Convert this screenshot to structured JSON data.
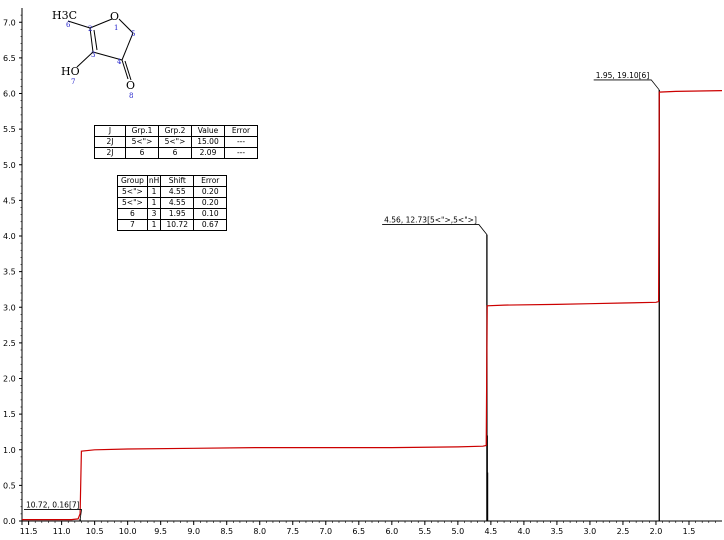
{
  "chart_data": {
    "type": "line",
    "title": "",
    "xlabel": "",
    "ylabel": "",
    "x_reversed": true,
    "xlim": [
      11.6,
      1.0
    ],
    "ylim": [
      0,
      7.2
    ],
    "x_ticks": [
      "11.5",
      "11.0",
      "10.5",
      "10.0",
      "9.5",
      "9.0",
      "8.5",
      "8.0",
      "7.5",
      "7.0",
      "6.5",
      "6.0",
      "5.5",
      "5.0",
      "4.5",
      "4.0",
      "3.5",
      "3.0",
      "2.5",
      "2.0",
      "1.5"
    ],
    "y_ticks": [
      "0.0",
      "0.5",
      "1.0",
      "1.5",
      "2.0",
      "2.5",
      "3.0",
      "3.5",
      "4.0",
      "4.5",
      "5.0",
      "5.5",
      "6.0",
      "6.5",
      "7.0"
    ],
    "colors": {
      "spectrum": "#000000",
      "integral": "#cc0000",
      "atom_numbers": "#2222cc"
    },
    "spectrum_peaks": [
      {
        "shift": 10.72,
        "height": 0.03
      },
      {
        "shift": 4.56,
        "height": 4.02
      },
      {
        "shift": 4.555,
        "height": 1.2
      },
      {
        "shift": 4.55,
        "height": 0.68
      },
      {
        "shift": 1.95,
        "height": 6.05
      }
    ],
    "integral": [
      [
        11.6,
        0.02
      ],
      [
        10.85,
        0.02
      ],
      [
        10.75,
        0.03
      ],
      [
        10.72,
        0.1
      ],
      [
        10.7,
        0.98
      ],
      [
        10.5,
        1.0
      ],
      [
        10.0,
        1.01
      ],
      [
        9.0,
        1.02
      ],
      [
        8.0,
        1.03
      ],
      [
        7.0,
        1.03
      ],
      [
        6.0,
        1.03
      ],
      [
        5.0,
        1.04
      ],
      [
        4.62,
        1.05
      ],
      [
        4.57,
        1.06
      ],
      [
        4.555,
        3.02
      ],
      [
        4.3,
        3.03
      ],
      [
        3.5,
        3.04
      ],
      [
        3.0,
        3.05
      ],
      [
        2.5,
        3.06
      ],
      [
        2.0,
        3.07
      ],
      [
        1.96,
        3.08
      ],
      [
        1.95,
        6.02
      ],
      [
        1.7,
        6.03
      ],
      [
        1.0,
        6.04
      ]
    ],
    "annotations": [
      {
        "label": "10.72, 0.16[7]",
        "shift": 10.72,
        "height": 0.02
      },
      {
        "label": "4.56, 12.73[5<\">,5<\">]",
        "shift": 4.56,
        "height": 4.02
      },
      {
        "label": "1.95, 19.10[6]",
        "shift": 1.95,
        "height": 6.05
      }
    ],
    "molecule": {
      "atoms": [
        {
          "symbol": "O",
          "number": "1"
        },
        {
          "symbol": "",
          "number": "2"
        },
        {
          "symbol": "",
          "number": "3"
        },
        {
          "symbol": "",
          "number": "4"
        },
        {
          "symbol": "",
          "number": "5"
        },
        {
          "symbol": "H3C",
          "number": "6"
        },
        {
          "symbol": "HO",
          "number": "7"
        },
        {
          "symbol": "O",
          "number": "8"
        }
      ]
    }
  },
  "coupling_table": {
    "headers": [
      "J",
      "Grp.1",
      "Grp.2",
      "Value",
      "Error"
    ],
    "rows": [
      [
        "2J",
        "5<\">",
        "5<\">",
        "15.00",
        "---"
      ],
      [
        "2J",
        "6",
        "6",
        "2.09",
        "---"
      ]
    ]
  },
  "shift_table": {
    "headers": [
      "Group",
      "nH",
      "Shift",
      "Error"
    ],
    "rows": [
      [
        "5<\">",
        "1",
        "4.55",
        "0.20"
      ],
      [
        "5<\">",
        "1",
        "4.55",
        "0.20"
      ],
      [
        "6",
        "3",
        "1.95",
        "0.10"
      ],
      [
        "7",
        "1",
        "10.72",
        "0.67"
      ]
    ]
  }
}
